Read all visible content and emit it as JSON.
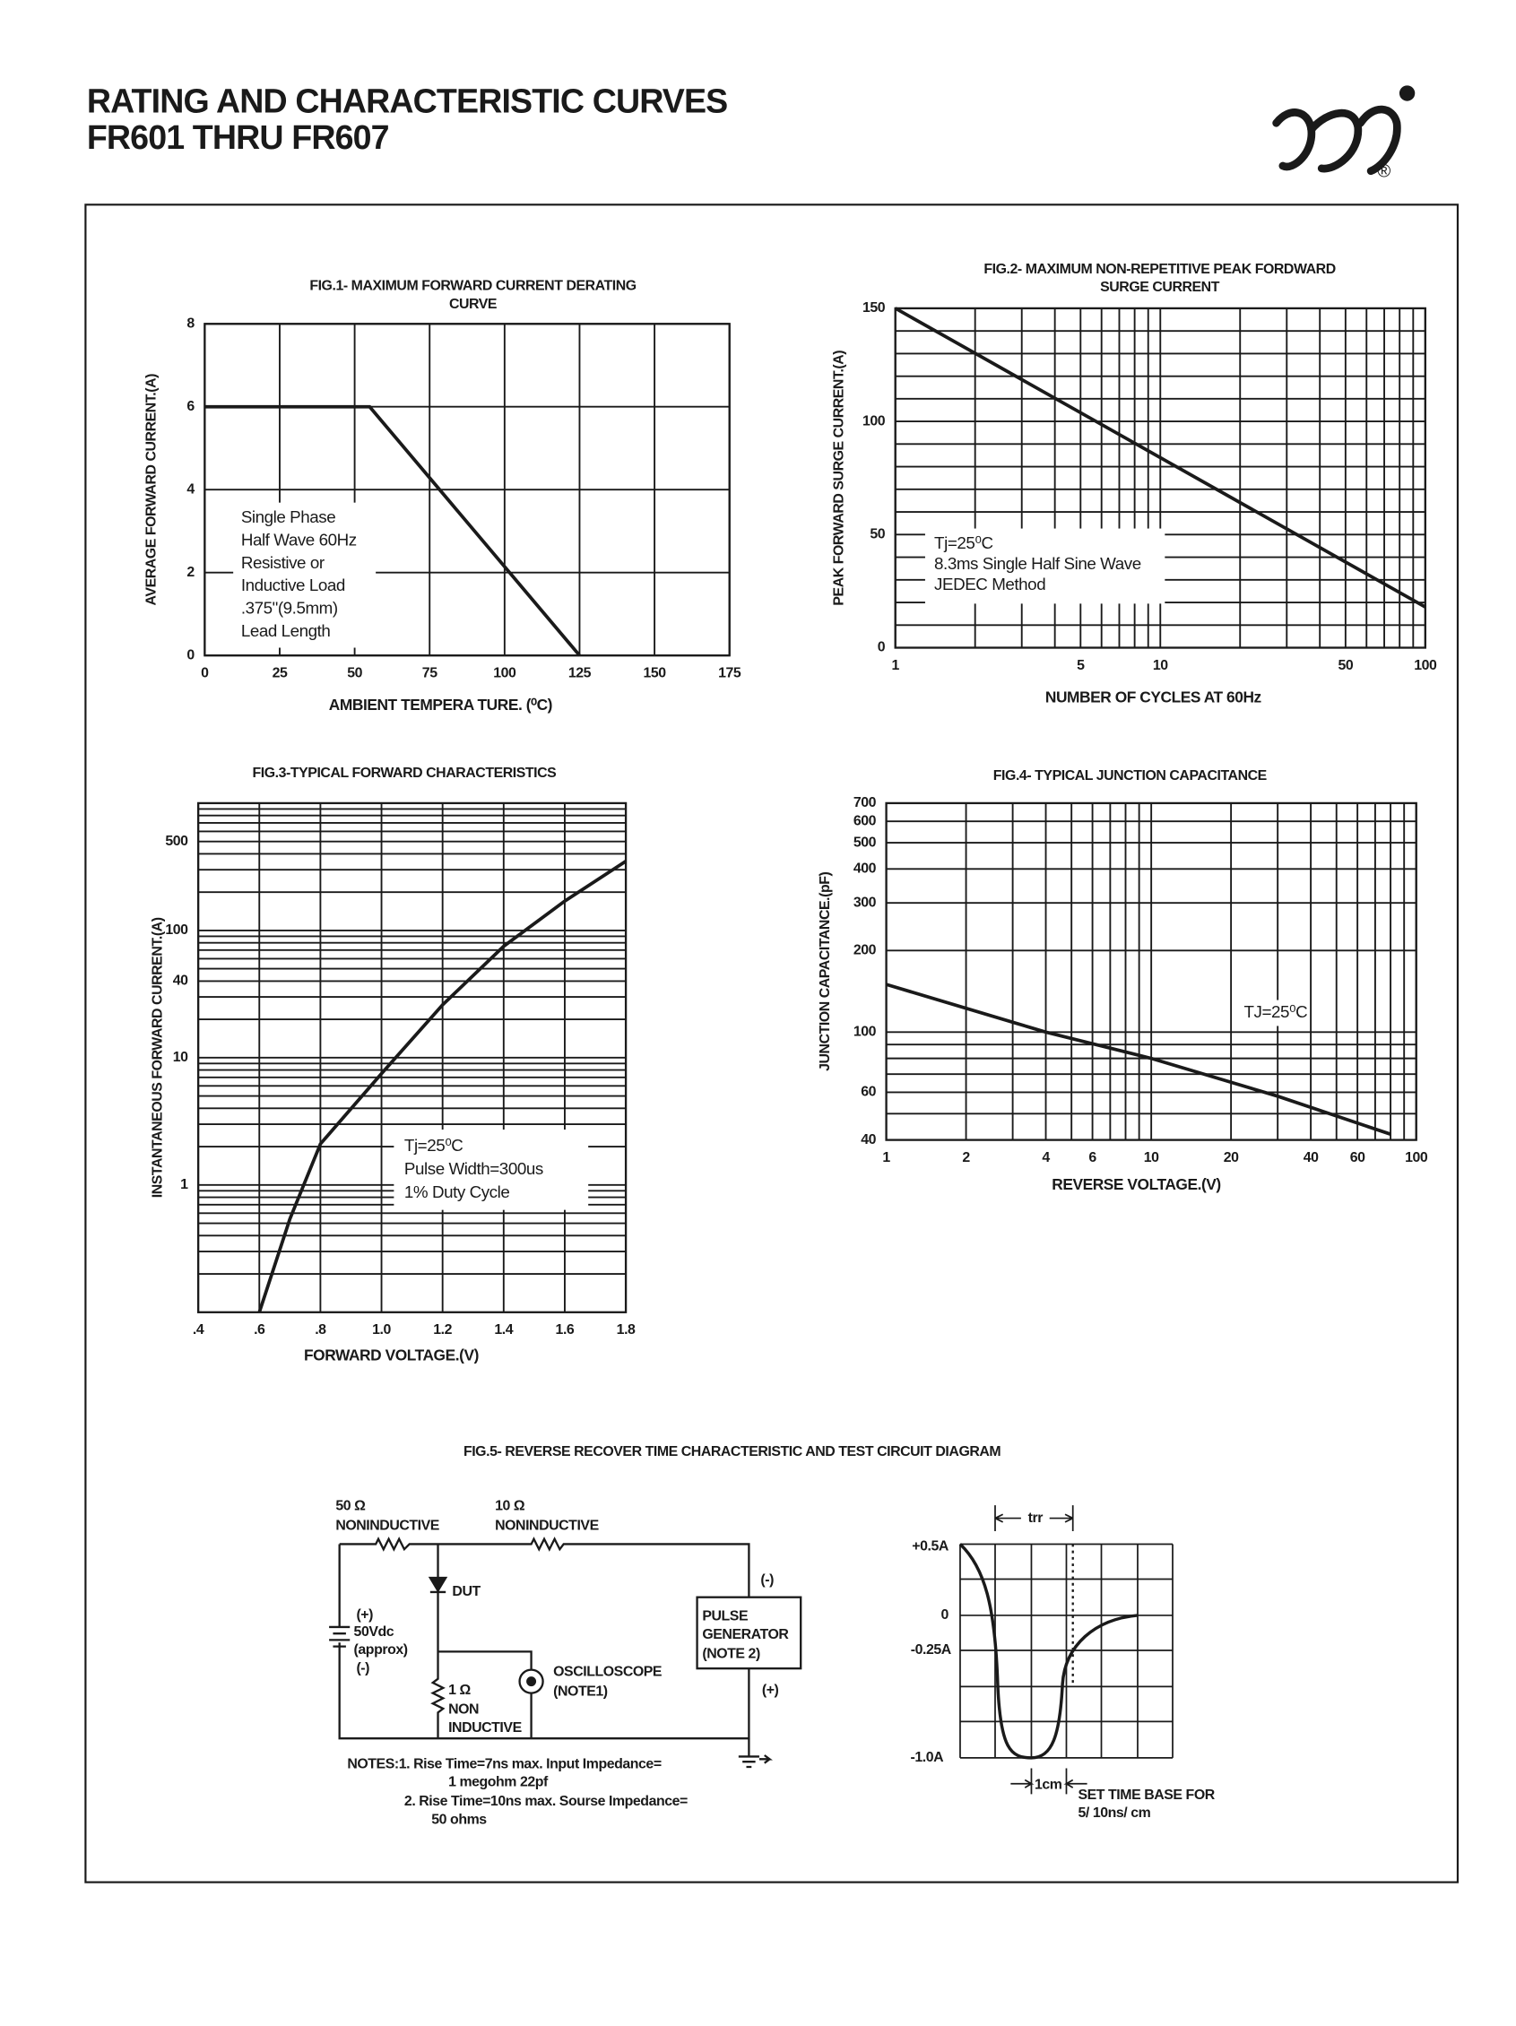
{
  "header": {
    "title": [
      "RATING AND CHARACTERISTIC CURVES",
      "FR601 THRU FR607"
    ],
    "logo_mark": "®"
  },
  "chart_data": [
    {
      "type": "line",
      "title": [
        "FIG.1- MAXIMUM FORWARD CURRENT DERATING",
        "CURVE"
      ],
      "xlabel": "AMBIENT TEMPERA TURE. (⁰C)",
      "ylabel": "AVERAGE FORWARD CURRENT.(A)",
      "x": [
        0,
        55,
        125
      ],
      "values": [
        6,
        6,
        0
      ],
      "color": "#1a1a1a",
      "xlim": [
        0,
        175
      ],
      "ylim": [
        0,
        8
      ],
      "xticks": [
        0,
        25,
        50,
        75,
        100,
        125,
        150,
        175
      ],
      "yticks": [
        0,
        2,
        4,
        6,
        8
      ],
      "grid": true,
      "annotations": [
        "Single Phase",
        "Half Wave 60Hz",
        "Resistive or",
        "Inductive Load",
        ".375\"(9.5mm)",
        "Lead Length"
      ]
    },
    {
      "type": "line",
      "title": [
        "FIG.2- MAXIMUM NON-REPETITIVE PEAK FORDWARD",
        "SURGE CURRENT"
      ],
      "xlabel": "NUMBER OF CYCLES AT 60Hz",
      "ylabel": "PEAK FORWARD SURGE CURRENT.(A)",
      "x": [
        1,
        10,
        100
      ],
      "values": [
        150,
        84,
        18
      ],
      "color": "#1a1a1a",
      "xscale": "log",
      "xlim": [
        1,
        100
      ],
      "ylim": [
        0,
        150
      ],
      "xticks": [
        1,
        5,
        10,
        50,
        100
      ],
      "yticks": [
        0,
        50,
        100,
        150
      ],
      "xminor": [
        2,
        3,
        4,
        6,
        7,
        8,
        9,
        20,
        30,
        40,
        60,
        70,
        80,
        90
      ],
      "yminor": [
        10,
        20,
        30,
        40,
        60,
        70,
        80,
        90,
        110,
        120,
        130,
        140
      ],
      "grid": true,
      "annotations": [
        "Tj=25⁰C",
        "8.3ms Single Half Sine Wave",
        "JEDEC Method"
      ]
    },
    {
      "type": "line",
      "title": [
        "FIG.3-TYPICAL FORWARD CHARACTERISTICS"
      ],
      "xlabel": "FORWARD VOLTAGE.(V)",
      "ylabel": "INSTANTANEOUS FORWARD CURRENT.(A)",
      "x": [
        0.6,
        0.7,
        0.8,
        1.0,
        1.2,
        1.4,
        1.6,
        1.8
      ],
      "values": [
        0.1,
        0.54,
        2.1,
        7.5,
        26,
        75,
        170,
        350
      ],
      "color": "#1a1a1a",
      "yscale": "log",
      "xlim": [
        0.4,
        1.8
      ],
      "ylim": [
        0.1,
        1000
      ],
      "xticks": [
        {
          "value": 0.4,
          "label": ".4"
        },
        {
          "value": 0.6,
          "label": ".6"
        },
        {
          "value": 0.8,
          "label": ".8"
        },
        {
          "value": 1,
          "label": "1.0"
        },
        1.2,
        1.4,
        1.6,
        1.8
      ],
      "yticks": [
        1,
        10,
        40,
        100,
        500
      ],
      "yminor": [
        0.2,
        0.3,
        0.4,
        0.5,
        0.6,
        0.7,
        0.8,
        0.9,
        2,
        3,
        4,
        5,
        6,
        7,
        8,
        9,
        20,
        30,
        50,
        60,
        70,
        80,
        90,
        200,
        300,
        400,
        600,
        700,
        800,
        900
      ],
      "grid": true,
      "annotations": [
        "Tj=25⁰C",
        "Pulse Width=300us",
        "1% Duty Cycle"
      ]
    },
    {
      "type": "line",
      "title": [
        "FIG.4- TYPICAL JUNCTION CAPACITANCE"
      ],
      "xlabel": "REVERSE VOLTAGE.(V)",
      "ylabel": "JUNCTION CAPACITANCE.(pF)",
      "x": [
        1,
        4,
        10,
        30,
        80
      ],
      "values": [
        150,
        100,
        80,
        58,
        42
      ],
      "color": "#1a1a1a",
      "xscale": "log",
      "yscale": "log",
      "xlim": [
        1,
        100
      ],
      "ylim": [
        40,
        700
      ],
      "xticks": [
        1,
        2,
        4,
        6,
        10,
        20,
        40,
        60,
        100
      ],
      "yticks": [
        40,
        60,
        100,
        200,
        300,
        400,
        500,
        600,
        700
      ],
      "xminor": [
        3,
        5,
        7,
        8,
        9,
        30,
        50,
        70,
        80,
        90
      ],
      "yminor": [
        50,
        70,
        80,
        90
      ],
      "grid": true,
      "annotations": [
        "TJ=25⁰C"
      ]
    }
  ],
  "fig5": {
    "title": "FIG.5- REVERSE RECOVER TIME CHARACTERISTIC AND TEST CIRCUIT DIAGRAM",
    "texts": [
      "50 Ω",
      "NONINDUCTIVE",
      "10 Ω",
      "NONINDUCTIVE",
      "DUT",
      "(+)",
      "50Vdc",
      "(approx)",
      "(-)",
      "PULSE",
      "GENERATOR",
      "(NOTE 2)",
      "(-)",
      "(+)",
      "OSCILLOSCOPE",
      "(NOTE1)",
      "1 Ω",
      "NON",
      "INDUCTIVE",
      "NOTES:1. Rise Time=7ns max. Input Impedance=",
      "1 megohm 22pf",
      "2. Rise Time=10ns max. Sourse Impedance=",
      "50 ohms",
      "+0.5A",
      "0",
      "-0.25A",
      "-1.0A",
      "trr",
      "1cm",
      "SET TIME BASE FOR",
      "5/ 10ns/ cm"
    ]
  }
}
